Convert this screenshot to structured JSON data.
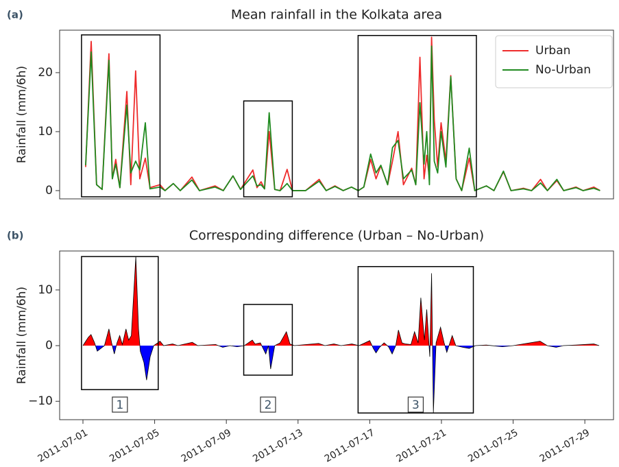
{
  "chart_data": [
    {
      "type": "line",
      "panel_label": "(a)",
      "title": "Mean rainfall in the Kolkata area",
      "ylabel": "Rainfall (mm/6h)",
      "xlim": [
        -1.3,
        29.6
      ],
      "ylim": [
        -1.4,
        27.2
      ],
      "yticks": [
        0,
        10,
        20
      ],
      "legend": "upper right",
      "x": [
        0.15,
        0.46,
        0.76,
        1.07,
        1.45,
        1.64,
        1.83,
        2.06,
        2.45,
        2.67,
        2.94,
        3.17,
        3.48,
        3.74,
        4.3,
        4.58,
        5.04,
        5.43,
        6.08,
        6.5,
        7.37,
        7.83,
        8.37,
        8.79,
        9.48,
        9.71,
        9.94,
        10.13,
        10.39,
        10.7,
        11.0,
        11.39,
        11.69,
        12.42,
        13.18,
        13.57,
        14.06,
        14.52,
        14.98,
        15.36,
        15.67,
        16.05,
        16.35,
        16.62,
        17.0,
        17.27,
        17.58,
        17.88,
        18.34,
        18.57,
        18.8,
        19.03,
        19.18,
        19.33,
        19.45,
        19.6,
        19.79,
        19.98,
        20.25,
        20.52,
        20.82,
        21.13,
        21.55,
        21.86,
        22.51,
        22.93,
        23.46,
        23.88,
        24.57,
        25.03,
        25.53,
        25.91,
        26.44,
        26.82,
        27.51,
        27.9,
        28.5,
        28.85
      ],
      "series": [
        {
          "name": "Urban",
          "color": "#ee2b2b",
          "values": [
            4,
            25.3,
            1,
            0.2,
            23.2,
            2,
            5.3,
            0.5,
            16.8,
            1,
            20.3,
            2,
            5.5,
            0.5,
            1,
            0,
            1.2,
            0,
            2.3,
            0,
            0.8,
            0,
            2.5,
            0.2,
            3.5,
            0.5,
            1.5,
            0.3,
            10,
            0.2,
            0,
            3.6,
            0,
            0,
            1.9,
            0,
            0.8,
            0,
            0.6,
            0,
            0.6,
            5.3,
            2,
            4.2,
            1,
            5,
            10,
            1,
            3.8,
            1,
            22.6,
            2,
            6,
            2,
            26,
            12,
            4,
            11.5,
            5,
            19.5,
            2,
            0,
            5.5,
            0,
            0.8,
            0,
            3.2,
            0,
            0.4,
            0,
            1.9,
            0,
            1.7,
            0,
            0.6,
            0,
            0.6,
            0
          ]
        },
        {
          "name": "No-Urban",
          "color": "#1f8a1f",
          "values": [
            4.3,
            23.5,
            1,
            0.2,
            22.1,
            2,
            4.5,
            0.5,
            14.5,
            3,
            5,
            3.5,
            11.5,
            0.3,
            0.6,
            0,
            1.2,
            0,
            1.8,
            0,
            0.6,
            0,
            2.5,
            0.2,
            2.5,
            0.8,
            1.0,
            0.3,
            13.2,
            0.2,
            0,
            1.2,
            0,
            0,
            1.6,
            0,
            0.7,
            0,
            0.6,
            0,
            0.6,
            6.2,
            3,
            4.3,
            1,
            7.3,
            8.5,
            2,
            3.5,
            1,
            14.9,
            4.5,
            10,
            1,
            24.5,
            5,
            3,
            10,
            4,
            19.3,
            2,
            0,
            7.2,
            0,
            0.8,
            0,
            3.3,
            0,
            0.3,
            0,
            1.3,
            0,
            1.9,
            0,
            0.5,
            0,
            0.4,
            0
          ]
        }
      ],
      "highlights": [
        {
          "xrange": [
            -0.08,
            4.3
          ],
          "yrange": [
            -1.05,
            26.4
          ]
        },
        {
          "xrange": [
            8.97,
            11.68
          ],
          "yrange": [
            -1.05,
            15.2
          ]
        },
        {
          "xrange": [
            15.35,
            21.95
          ],
          "yrange": [
            -1.05,
            26.3
          ]
        }
      ]
    },
    {
      "type": "area",
      "panel_label": "(b)",
      "title": "Corresponding difference (Urban – No-Urban)",
      "ylabel": "Rainfall (mm/6h)",
      "xlim": [
        -1.3,
        29.6
      ],
      "ylim": [
        -13.3,
        17.0
      ],
      "yticks": [
        {
          "value": -10,
          "label": "−10"
        },
        0,
        10
      ],
      "xticks": [
        {
          "value": 0,
          "label": "2011-07-01"
        },
        {
          "value": 4,
          "label": "2011-07-05"
        },
        {
          "value": 8,
          "label": "2011-07-09"
        },
        {
          "value": 12,
          "label": "2011-07-13"
        },
        {
          "value": 16,
          "label": "2011-07-17"
        },
        {
          "value": 20,
          "label": "2011-07-21"
        },
        {
          "value": 24,
          "label": "2011-07-25"
        },
        {
          "value": 28,
          "label": "2011-07-29"
        }
      ],
      "color": "#000000",
      "positive_color": "#ff0000",
      "negative_color": "#0000ff",
      "x": [
        0.0,
        0.3,
        0.45,
        0.65,
        0.8,
        1.0,
        1.2,
        1.45,
        1.6,
        1.75,
        1.9,
        2.05,
        2.2,
        2.4,
        2.55,
        2.7,
        2.95,
        3.1,
        3.2,
        3.4,
        3.55,
        3.75,
        3.95,
        4.3,
        4.5,
        5.0,
        5.3,
        6.1,
        6.4,
        7.4,
        7.8,
        8.2,
        8.6,
        9.0,
        9.45,
        9.6,
        9.9,
        10.05,
        10.2,
        10.35,
        10.47,
        10.7,
        11.0,
        11.35,
        11.55,
        11.8,
        13.15,
        13.5,
        14.0,
        14.4,
        15.0,
        15.4,
        16.0,
        16.2,
        16.35,
        16.55,
        16.8,
        17.05,
        17.25,
        17.45,
        17.6,
        17.8,
        18.0,
        18.3,
        18.5,
        18.7,
        18.85,
        19.05,
        19.18,
        19.35,
        19.45,
        19.55,
        19.7,
        19.95,
        20.15,
        20.3,
        20.45,
        20.6,
        20.8,
        21.2,
        21.55,
        21.9,
        22.5,
        23.4,
        24.0,
        25.5,
        25.9,
        26.4,
        26.8,
        27.5,
        28.5,
        28.8
      ],
      "values": [
        0,
        1.5,
        2,
        0.5,
        -1,
        -0.5,
        0,
        3,
        0.5,
        -1.5,
        0.5,
        1.8,
        0.2,
        3,
        1,
        1.8,
        16,
        3,
        -1,
        -3,
        -6.2,
        -2,
        0,
        0.8,
        0,
        0.3,
        0,
        0.6,
        0,
        0.2,
        -0.3,
        0,
        -0.2,
        0,
        1,
        0.3,
        0.5,
        -0.5,
        -1.5,
        0,
        -4.2,
        0,
        0.5,
        2.5,
        0.3,
        0,
        0.4,
        0,
        0.3,
        0,
        0.3,
        0,
        0.9,
        -0.5,
        -1.3,
        -0.3,
        0.5,
        -0.2,
        -1.5,
        0,
        2.8,
        0.5,
        0.3,
        0.2,
        2.5,
        0.5,
        8.6,
        1,
        6.5,
        -2,
        13,
        -12,
        0.5,
        3.3,
        0.5,
        -1.2,
        0.3,
        1.8,
        0,
        -0.3,
        -0.5,
        0,
        0.1,
        -0.2,
        0,
        0.8,
        0,
        -0.3,
        0,
        0.1,
        0.3,
        0
      ],
      "highlights": [
        {
          "xrange": [
            -0.08,
            4.2
          ],
          "yrange": [
            -7.9,
            16.0
          ],
          "label": "1"
        },
        {
          "xrange": [
            8.97,
            11.68
          ],
          "yrange": [
            -5.3,
            7.4
          ],
          "label": "2"
        },
        {
          "xrange": [
            15.35,
            21.78
          ],
          "yrange": [
            -12.1,
            14.2
          ],
          "label": "3"
        }
      ]
    }
  ]
}
